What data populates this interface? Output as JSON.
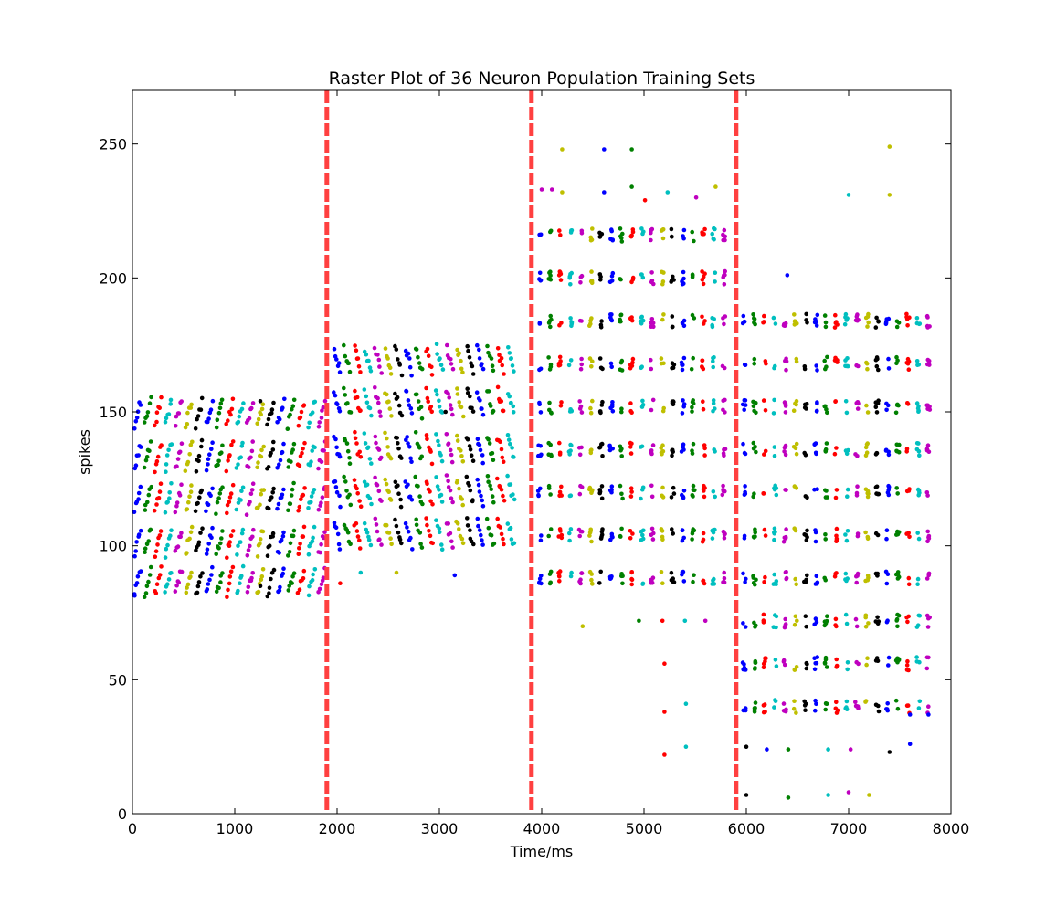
{
  "chart_data": {
    "type": "scatter",
    "title": "Raster Plot of 36 Neuron Population Training Sets",
    "xlabel": "Time/ms",
    "ylabel": "spikes",
    "xlim": [
      0,
      8000
    ],
    "ylim": [
      0,
      270
    ],
    "xticks": [
      0,
      1000,
      2000,
      3000,
      4000,
      5000,
      6000,
      7000,
      8000
    ],
    "yticks": [
      0,
      50,
      100,
      150,
      200,
      250
    ],
    "grid": false,
    "legend": "none",
    "boundaries": {
      "x": [
        1900,
        3900,
        5900
      ],
      "color": "#ff4040",
      "style": "dashed"
    },
    "colors": [
      "#0000ff",
      "#008000",
      "#ff0000",
      "#00bfbf",
      "#bf00bf",
      "#bfbf00",
      "#000000"
    ],
    "segments": [
      {
        "t0": 0,
        "t1": 1900,
        "description": "diagonal spike trains",
        "bands": [
          82,
          97,
          113,
          129,
          145
        ],
        "rise": 9,
        "burst_interval": 100,
        "extra_points": [
          {
            "x": 20,
            "y": 82,
            "color": "#0000ff"
          },
          {
            "x": 1250,
            "y": 154,
            "color": "#000000"
          },
          {
            "x": 1250,
            "y": 85,
            "color": "#000000"
          }
        ]
      },
      {
        "t0": 1950,
        "t1": 3800,
        "description": "diagonal spike trains, descending",
        "bands": [
          100,
          116,
          132,
          149,
          165
        ],
        "rise": -9,
        "burst_interval": 100,
        "extra_points": [
          {
            "x": 2030,
            "y": 86,
            "color": "#ff0000"
          },
          {
            "x": 2230,
            "y": 90,
            "color": "#00bfbf"
          },
          {
            "x": 2580,
            "y": 90,
            "color": "#bfbf00"
          },
          {
            "x": 3150,
            "y": 89,
            "color": "#0000ff"
          },
          {
            "x": 3060,
            "y": 150,
            "color": "#000000"
          }
        ]
      },
      {
        "t0": 3950,
        "t1": 5850,
        "description": "clustered spikes",
        "rows": [
          216,
          200,
          184,
          168,
          152,
          136,
          120,
          104,
          88
        ],
        "burst_interval": 100,
        "extra_points": [
          {
            "x": 4200,
            "y": 248,
            "color": "#bfbf00"
          },
          {
            "x": 4610,
            "y": 248,
            "color": "#0000ff"
          },
          {
            "x": 4880,
            "y": 248,
            "color": "#008000"
          },
          {
            "x": 4000,
            "y": 233,
            "color": "#bf00bf"
          },
          {
            "x": 4100,
            "y": 233,
            "color": "#bf00bf"
          },
          {
            "x": 4200,
            "y": 232,
            "color": "#bfbf00"
          },
          {
            "x": 4610,
            "y": 232,
            "color": "#0000ff"
          },
          {
            "x": 4880,
            "y": 234,
            "color": "#008000"
          },
          {
            "x": 5010,
            "y": 229,
            "color": "#ff0000"
          },
          {
            "x": 5230,
            "y": 232,
            "color": "#00bfbf"
          },
          {
            "x": 5510,
            "y": 230,
            "color": "#bf00bf"
          },
          {
            "x": 5700,
            "y": 234,
            "color": "#bfbf00"
          },
          {
            "x": 4400,
            "y": 70,
            "color": "#bfbf00"
          },
          {
            "x": 4950,
            "y": 72,
            "color": "#008000"
          },
          {
            "x": 5180,
            "y": 72,
            "color": "#ff0000"
          },
          {
            "x": 5400,
            "y": 72,
            "color": "#00bfbf"
          },
          {
            "x": 5600,
            "y": 72,
            "color": "#bf00bf"
          },
          {
            "x": 5200,
            "y": 56,
            "color": "#ff0000"
          },
          {
            "x": 5200,
            "y": 38,
            "color": "#ff0000"
          },
          {
            "x": 5410,
            "y": 41,
            "color": "#00bfbf"
          },
          {
            "x": 5200,
            "y": 22,
            "color": "#ff0000"
          },
          {
            "x": 5410,
            "y": 25,
            "color": "#00bfbf"
          }
        ]
      },
      {
        "t0": 5950,
        "t1": 7850,
        "description": "clustered spikes, downward shift",
        "rows": [
          184,
          168,
          152,
          136,
          120,
          104,
          88,
          72,
          56,
          40
        ],
        "burst_interval": 100,
        "extra_points": [
          {
            "x": 6400,
            "y": 201,
            "color": "#0000ff"
          },
          {
            "x": 7000,
            "y": 231,
            "color": "#00bfbf"
          },
          {
            "x": 7400,
            "y": 231,
            "color": "#bfbf00"
          },
          {
            "x": 7400,
            "y": 249,
            "color": "#bfbf00"
          },
          {
            "x": 6000,
            "y": 25,
            "color": "#000000"
          },
          {
            "x": 6200,
            "y": 24,
            "color": "#0000ff"
          },
          {
            "x": 6410,
            "y": 24,
            "color": "#008000"
          },
          {
            "x": 6800,
            "y": 24,
            "color": "#00bfbf"
          },
          {
            "x": 7020,
            "y": 24,
            "color": "#bf00bf"
          },
          {
            "x": 7400,
            "y": 23,
            "color": "#000000"
          },
          {
            "x": 7600,
            "y": 26,
            "color": "#0000ff"
          },
          {
            "x": 6000,
            "y": 7,
            "color": "#000000"
          },
          {
            "x": 6410,
            "y": 6,
            "color": "#008000"
          },
          {
            "x": 6800,
            "y": 7,
            "color": "#00bfbf"
          },
          {
            "x": 7000,
            "y": 8,
            "color": "#bf00bf"
          },
          {
            "x": 7200,
            "y": 7,
            "color": "#bfbf00"
          },
          {
            "x": 7600,
            "y": 37,
            "color": "#0000ff"
          },
          {
            "x": 7780,
            "y": 37,
            "color": "#0000ff"
          }
        ]
      }
    ]
  }
}
